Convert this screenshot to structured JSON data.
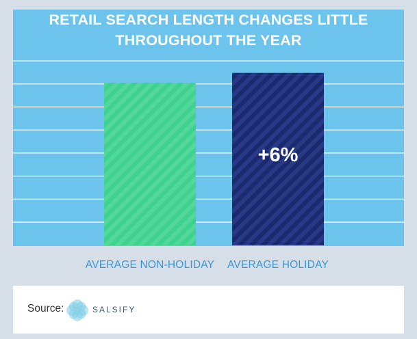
{
  "chart_data": {
    "type": "bar",
    "title": "RETAIL SEARCH LENGTH CHANGES LITTLE THROUGHOUT THE YEAR",
    "title_lines": [
      "RETAIL SEARCH LENGTH CHANGES LITTLE",
      "THROUGHOUT THE YEAR"
    ],
    "categories": [
      "AVERAGE NON-HOLIDAY",
      "AVERAGE HOLIDAY"
    ],
    "values": [
      100,
      106
    ],
    "bar_annotations": [
      "",
      "+6%"
    ],
    "colors": [
      "#3fd18f",
      "#1b2a6e"
    ],
    "ylim": [
      0,
      113
    ],
    "grid": true,
    "xlabel": "",
    "ylabel": ""
  },
  "source": {
    "label": "Source:",
    "logo_text": "SALSIFY"
  }
}
